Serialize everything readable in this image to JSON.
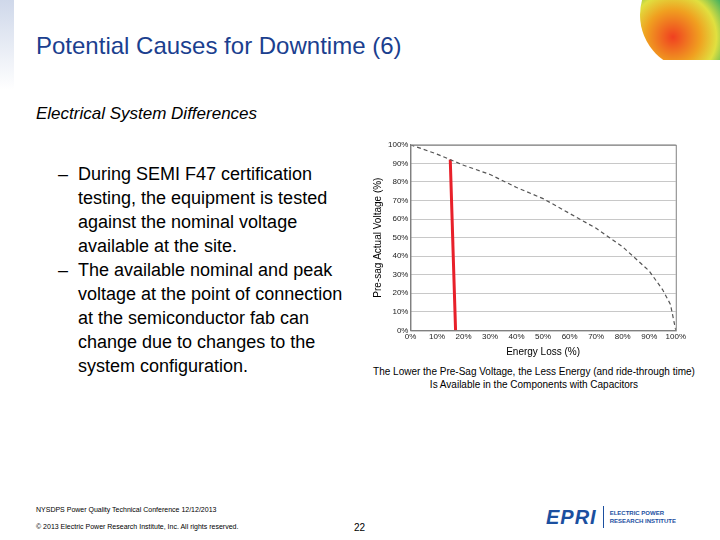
{
  "title": "Potential Causes for Downtime (6)",
  "subtitle": "Electrical System Differences",
  "bullet": "–",
  "bullets": [
    "During SEMI F47 certification testing, the equipment is tested against the nominal voltage available at the site.",
    "The available nominal and peak voltage at the point of connection at the semiconductor fab can change due to changes to the system configuration."
  ],
  "chart_data": {
    "type": "line",
    "x_label": "Energy Loss (%)",
    "y_label": "Pre-sag Actual Voltage (%)",
    "xlim": [
      0,
      100
    ],
    "ylim": [
      0,
      100
    ],
    "xticks": [
      {
        "value": 0,
        "label": "0%"
      },
      {
        "value": 10,
        "label": "10%"
      },
      {
        "value": 20,
        "label": "20%"
      },
      {
        "value": 30,
        "label": "30%"
      },
      {
        "value": 40,
        "label": "40%"
      },
      {
        "value": 50,
        "label": "50%"
      },
      {
        "value": 60,
        "label": "60%"
      },
      {
        "value": 70,
        "label": "70%"
      },
      {
        "value": 80,
        "label": "80%"
      },
      {
        "value": 90,
        "label": "90%"
      },
      {
        "value": 100,
        "label": "100%"
      }
    ],
    "yticks": [
      {
        "value": 0,
        "label": "0%"
      },
      {
        "value": 10,
        "label": "10%"
      },
      {
        "value": 20,
        "label": "20%"
      },
      {
        "value": 30,
        "label": "30%"
      },
      {
        "value": 40,
        "label": "40%"
      },
      {
        "value": 50,
        "label": "50%"
      },
      {
        "value": 60,
        "label": "60%"
      },
      {
        "value": 70,
        "label": "70%"
      },
      {
        "value": 80,
        "label": "80%"
      },
      {
        "value": 90,
        "label": "90%"
      },
      {
        "value": 100,
        "label": "100%"
      }
    ],
    "grid": "y",
    "series": [
      {
        "x": [
          0,
          10,
          20,
          30,
          40,
          50,
          60,
          70,
          80,
          90,
          95,
          98,
          100
        ],
        "values": [
          100,
          95,
          89,
          84,
          77,
          71,
          63,
          55,
          45,
          32,
          22,
          14,
          0
        ],
        "color": "#555555",
        "line_style": "dashed"
      },
      {
        "x": [
          15,
          17
        ],
        "values": [
          92,
          0
        ],
        "color": "#e8202a",
        "line_style": "solid"
      }
    ]
  },
  "caption": [
    "The Lower the Pre-Sag Voltage, the Less Energy (and ride-through time)",
    "Is Available in the Components with Capacitors"
  ],
  "footer": {
    "conference": "NYSDPS Power Quality Technical Conference  12/12/2013",
    "copyright": "© 2013 Electric Power Research Institute, Inc. All rights reserved.",
    "page": 22
  },
  "logo": {
    "name": "EPRI",
    "lines": [
      "ELECTRIC POWER",
      "RESEARCH INSTITUTE"
    ]
  }
}
